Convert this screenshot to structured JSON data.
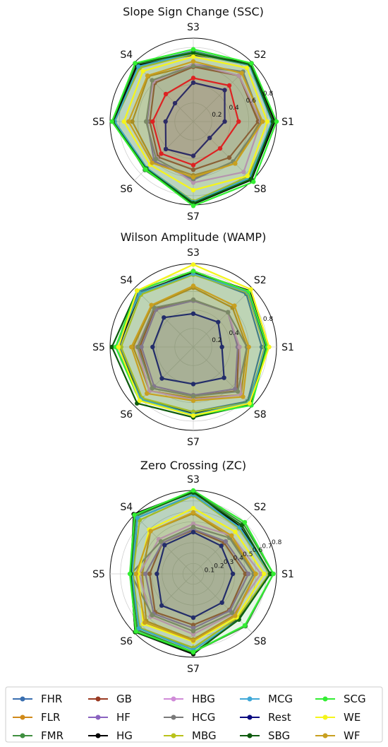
{
  "colors": {
    "FHR": "#3a6fb0",
    "FLR": "#d08a1a",
    "FMR": "#3f8f3f",
    "GB": "#9a3a22",
    "HF": "#8a63c0",
    "HG": "#000000",
    "HBG": "#d08bd8",
    "HCG": "#7a7a7a",
    "MBG": "#b9c21a",
    "MCG": "#3fa8d8",
    "Rest": "#0a0a80",
    "SBG": "#0d5a0d",
    "SCG": "#33ee33",
    "WE": "#f5f51a",
    "WF": "#c8a020",
    "SSC_Rest_red": "#dd2222"
  },
  "chart_data": [
    {
      "type": "radar",
      "title": "Slope Sign Change (SSC)",
      "axes": [
        "S1",
        "S2",
        "S3",
        "S4",
        "S5",
        "S6",
        "S7",
        "S8"
      ],
      "rlim": [
        0,
        0.9
      ],
      "rticks": [
        0.2,
        0.4,
        0.6,
        0.8
      ],
      "rtick_labels": [
        "0.2",
        "0.4",
        "0.6",
        "0.8"
      ],
      "series": [
        {
          "name": "FHR",
          "values": [
            0.86,
            0.87,
            0.76,
            0.87,
            0.86,
            0.73,
            0.89,
            0.88
          ]
        },
        {
          "name": "FLR",
          "values": [
            0.72,
            0.7,
            0.61,
            0.69,
            0.66,
            0.61,
            0.58,
            0.64
          ]
        },
        {
          "name": "FMR",
          "values": [
            0.86,
            0.88,
            0.75,
            0.87,
            0.85,
            0.74,
            0.88,
            0.88
          ]
        },
        {
          "name": "GB",
          "values": [
            0.7,
            0.7,
            0.59,
            0.59,
            0.47,
            0.54,
            0.52,
            0.55
          ]
        },
        {
          "name": "HF",
          "values": [
            0.74,
            0.76,
            0.62,
            0.62,
            0.5,
            0.6,
            0.63,
            0.61
          ]
        },
        {
          "name": "HG",
          "values": [
            0.88,
            0.89,
            0.72,
            0.86,
            0.86,
            0.72,
            0.89,
            0.89
          ]
        },
        {
          "name": "HBG",
          "values": [
            0.73,
            0.7,
            0.62,
            0.61,
            0.51,
            0.56,
            0.66,
            0.77
          ]
        },
        {
          "name": "HCG",
          "values": [
            0.74,
            0.76,
            0.6,
            0.63,
            0.51,
            0.57,
            0.62,
            0.61
          ]
        },
        {
          "name": "MBG",
          "values": [
            0.86,
            0.86,
            0.73,
            0.82,
            0.85,
            0.71,
            0.86,
            0.84
          ]
        },
        {
          "name": "MCG",
          "values": [
            0.85,
            0.86,
            0.74,
            0.84,
            0.85,
            0.71,
            0.87,
            0.86
          ]
        },
        {
          "name": "Rest",
          "values": [
            0.34,
            0.48,
            0.42,
            0.28,
            0.3,
            0.42,
            0.37,
            0.25
          ]
        },
        {
          "name": "SBG",
          "values": [
            0.86,
            0.87,
            0.74,
            0.89,
            0.87,
            0.72,
            0.88,
            0.88
          ]
        },
        {
          "name": "SCG",
          "values": [
            0.9,
            0.89,
            0.78,
            0.89,
            0.88,
            0.73,
            0.91,
            0.92
          ]
        },
        {
          "name": "WE",
          "values": [
            0.8,
            0.82,
            0.7,
            0.77,
            0.75,
            0.66,
            0.74,
            0.83
          ]
        },
        {
          "name": "WF",
          "values": [
            0.75,
            0.74,
            0.65,
            0.7,
            0.7,
            0.63,
            0.6,
            0.64
          ]
        },
        {
          "name": "",
          "values": [
            0.49,
            0.55,
            0.47,
            0.42,
            0.44,
            0.49,
            0.47,
            0.41
          ]
        }
      ]
    },
    {
      "type": "radar",
      "title": "Wilson Amplitude (WAMP)",
      "axes": [
        "S1",
        "S2",
        "S3",
        "S4",
        "S5",
        "S6",
        "S7",
        "S8"
      ],
      "rlim": [
        0,
        0.9
      ],
      "rticks": [
        0.2,
        0.4,
        0.6,
        0.8
      ],
      "rtick_labels": [
        "0.2",
        "0.4",
        "",
        "0.8"
      ],
      "series": [
        {
          "name": "FHR",
          "values": [
            0.74,
            0.81,
            0.79,
            0.84,
            0.8,
            0.79,
            0.7,
            0.83
          ]
        },
        {
          "name": "FLR",
          "values": [
            0.58,
            0.6,
            0.64,
            0.63,
            0.65,
            0.67,
            0.55,
            0.73
          ]
        },
        {
          "name": "FMR",
          "values": [
            0.78,
            0.83,
            0.8,
            0.82,
            0.81,
            0.8,
            0.72,
            0.84
          ]
        },
        {
          "name": "GB",
          "values": [
            0.49,
            0.53,
            0.5,
            0.59,
            0.58,
            0.63,
            0.53,
            0.67
          ]
        },
        {
          "name": "HF",
          "values": [
            0.48,
            0.53,
            0.5,
            0.57,
            0.56,
            0.6,
            0.52,
            0.64
          ]
        },
        {
          "name": "HG",
          "values": [
            0.8,
            0.86,
            0.81,
            0.82,
            0.81,
            0.81,
            0.72,
            0.86
          ]
        },
        {
          "name": "HBG",
          "values": [
            0.5,
            0.53,
            0.51,
            0.6,
            0.61,
            0.67,
            0.57,
            0.73
          ]
        },
        {
          "name": "HCG",
          "values": [
            0.58,
            0.53,
            0.51,
            0.6,
            0.6,
            0.63,
            0.53,
            0.68
          ]
        },
        {
          "name": "MBG",
          "values": [
            0.77,
            0.83,
            0.78,
            0.8,
            0.78,
            0.78,
            0.7,
            0.85
          ]
        },
        {
          "name": "MCG",
          "values": [
            0.78,
            0.84,
            0.79,
            0.82,
            0.84,
            0.8,
            0.73,
            0.85
          ]
        },
        {
          "name": "Rest",
          "values": [
            0.31,
            0.38,
            0.36,
            0.45,
            0.44,
            0.48,
            0.4,
            0.47
          ]
        },
        {
          "name": "SBG",
          "values": [
            0.79,
            0.85,
            0.82,
            0.86,
            0.88,
            0.86,
            0.76,
            0.88
          ]
        },
        {
          "name": "SCG",
          "values": [
            0.8,
            0.85,
            0.82,
            0.86,
            0.84,
            0.82,
            0.74,
            0.89
          ]
        },
        {
          "name": "WE",
          "values": [
            0.82,
            0.88,
            0.89,
            0.86,
            0.81,
            0.82,
            0.74,
            0.86
          ]
        },
        {
          "name": "WF",
          "values": [
            0.6,
            0.63,
            0.66,
            0.64,
            0.67,
            0.71,
            0.58,
            0.76
          ]
        }
      ]
    },
    {
      "type": "radar",
      "title": "Zero Crossing (ZC)",
      "axes": [
        "S1",
        "S2",
        "S3",
        "S4",
        "S5",
        "S6",
        "S7",
        "S8"
      ],
      "rlim": [
        0,
        0.8
      ],
      "rticks": [
        0.1,
        0.2,
        0.3,
        0.4,
        0.5,
        0.6,
        0.7,
        0.8
      ],
      "rtick_labels": [
        "0.1",
        "0.2",
        "0.3",
        "0.4",
        "0.5",
        "0.6",
        "0.7",
        "0.8"
      ],
      "series": [
        {
          "name": "FHR",
          "values": [
            0.74,
            0.63,
            0.76,
            0.76,
            0.58,
            0.74,
            0.71,
            0.6
          ]
        },
        {
          "name": "FLR",
          "values": [
            0.6,
            0.5,
            0.58,
            0.58,
            0.49,
            0.64,
            0.63,
            0.56
          ]
        },
        {
          "name": "FMR",
          "values": [
            0.77,
            0.68,
            0.79,
            0.78,
            0.6,
            0.76,
            0.75,
            0.71
          ]
        },
        {
          "name": "GB",
          "values": [
            0.5,
            0.42,
            0.42,
            0.42,
            0.42,
            0.52,
            0.49,
            0.49
          ]
        },
        {
          "name": "HF",
          "values": [
            0.53,
            0.44,
            0.43,
            0.42,
            0.46,
            0.54,
            0.52,
            0.5
          ]
        },
        {
          "name": "HG",
          "values": [
            0.74,
            0.64,
            0.79,
            0.81,
            0.6,
            0.79,
            0.77,
            0.61
          ]
        },
        {
          "name": "HBG",
          "values": [
            0.65,
            0.52,
            0.48,
            0.47,
            0.52,
            0.58,
            0.58,
            0.54
          ]
        },
        {
          "name": "HCG",
          "values": [
            0.58,
            0.49,
            0.45,
            0.44,
            0.6,
            0.56,
            0.55,
            0.53
          ]
        },
        {
          "name": "MBG",
          "values": [
            0.73,
            0.62,
            0.75,
            0.73,
            0.58,
            0.73,
            0.71,
            0.6
          ]
        },
        {
          "name": "MCG",
          "values": [
            0.74,
            0.63,
            0.76,
            0.76,
            0.59,
            0.74,
            0.73,
            0.62
          ]
        },
        {
          "name": "Rest",
          "values": [
            0.38,
            0.38,
            0.4,
            0.39,
            0.35,
            0.43,
            0.42,
            0.39
          ]
        },
        {
          "name": "SBG",
          "values": [
            0.74,
            0.66,
            0.78,
            0.8,
            0.6,
            0.79,
            0.76,
            0.62
          ]
        },
        {
          "name": "SCG",
          "values": [
            0.77,
            0.7,
            0.8,
            0.8,
            0.61,
            0.78,
            0.75,
            0.7
          ]
        },
        {
          "name": "WE",
          "values": [
            0.68,
            0.57,
            0.63,
            0.6,
            0.53,
            0.68,
            0.65,
            0.59
          ]
        },
        {
          "name": "WF",
          "values": [
            0.6,
            0.52,
            0.59,
            0.58,
            0.55,
            0.66,
            0.64,
            0.57
          ]
        }
      ]
    }
  ],
  "legend": {
    "columns": [
      [
        "FHR",
        "FLR",
        "FMR"
      ],
      [
        "GB",
        "HF",
        "HG"
      ],
      [
        "HBG",
        "HCG",
        "MBG"
      ],
      [
        "MCG",
        "Rest",
        "SBG"
      ],
      [
        "SCG",
        "WE",
        "WF"
      ]
    ]
  }
}
